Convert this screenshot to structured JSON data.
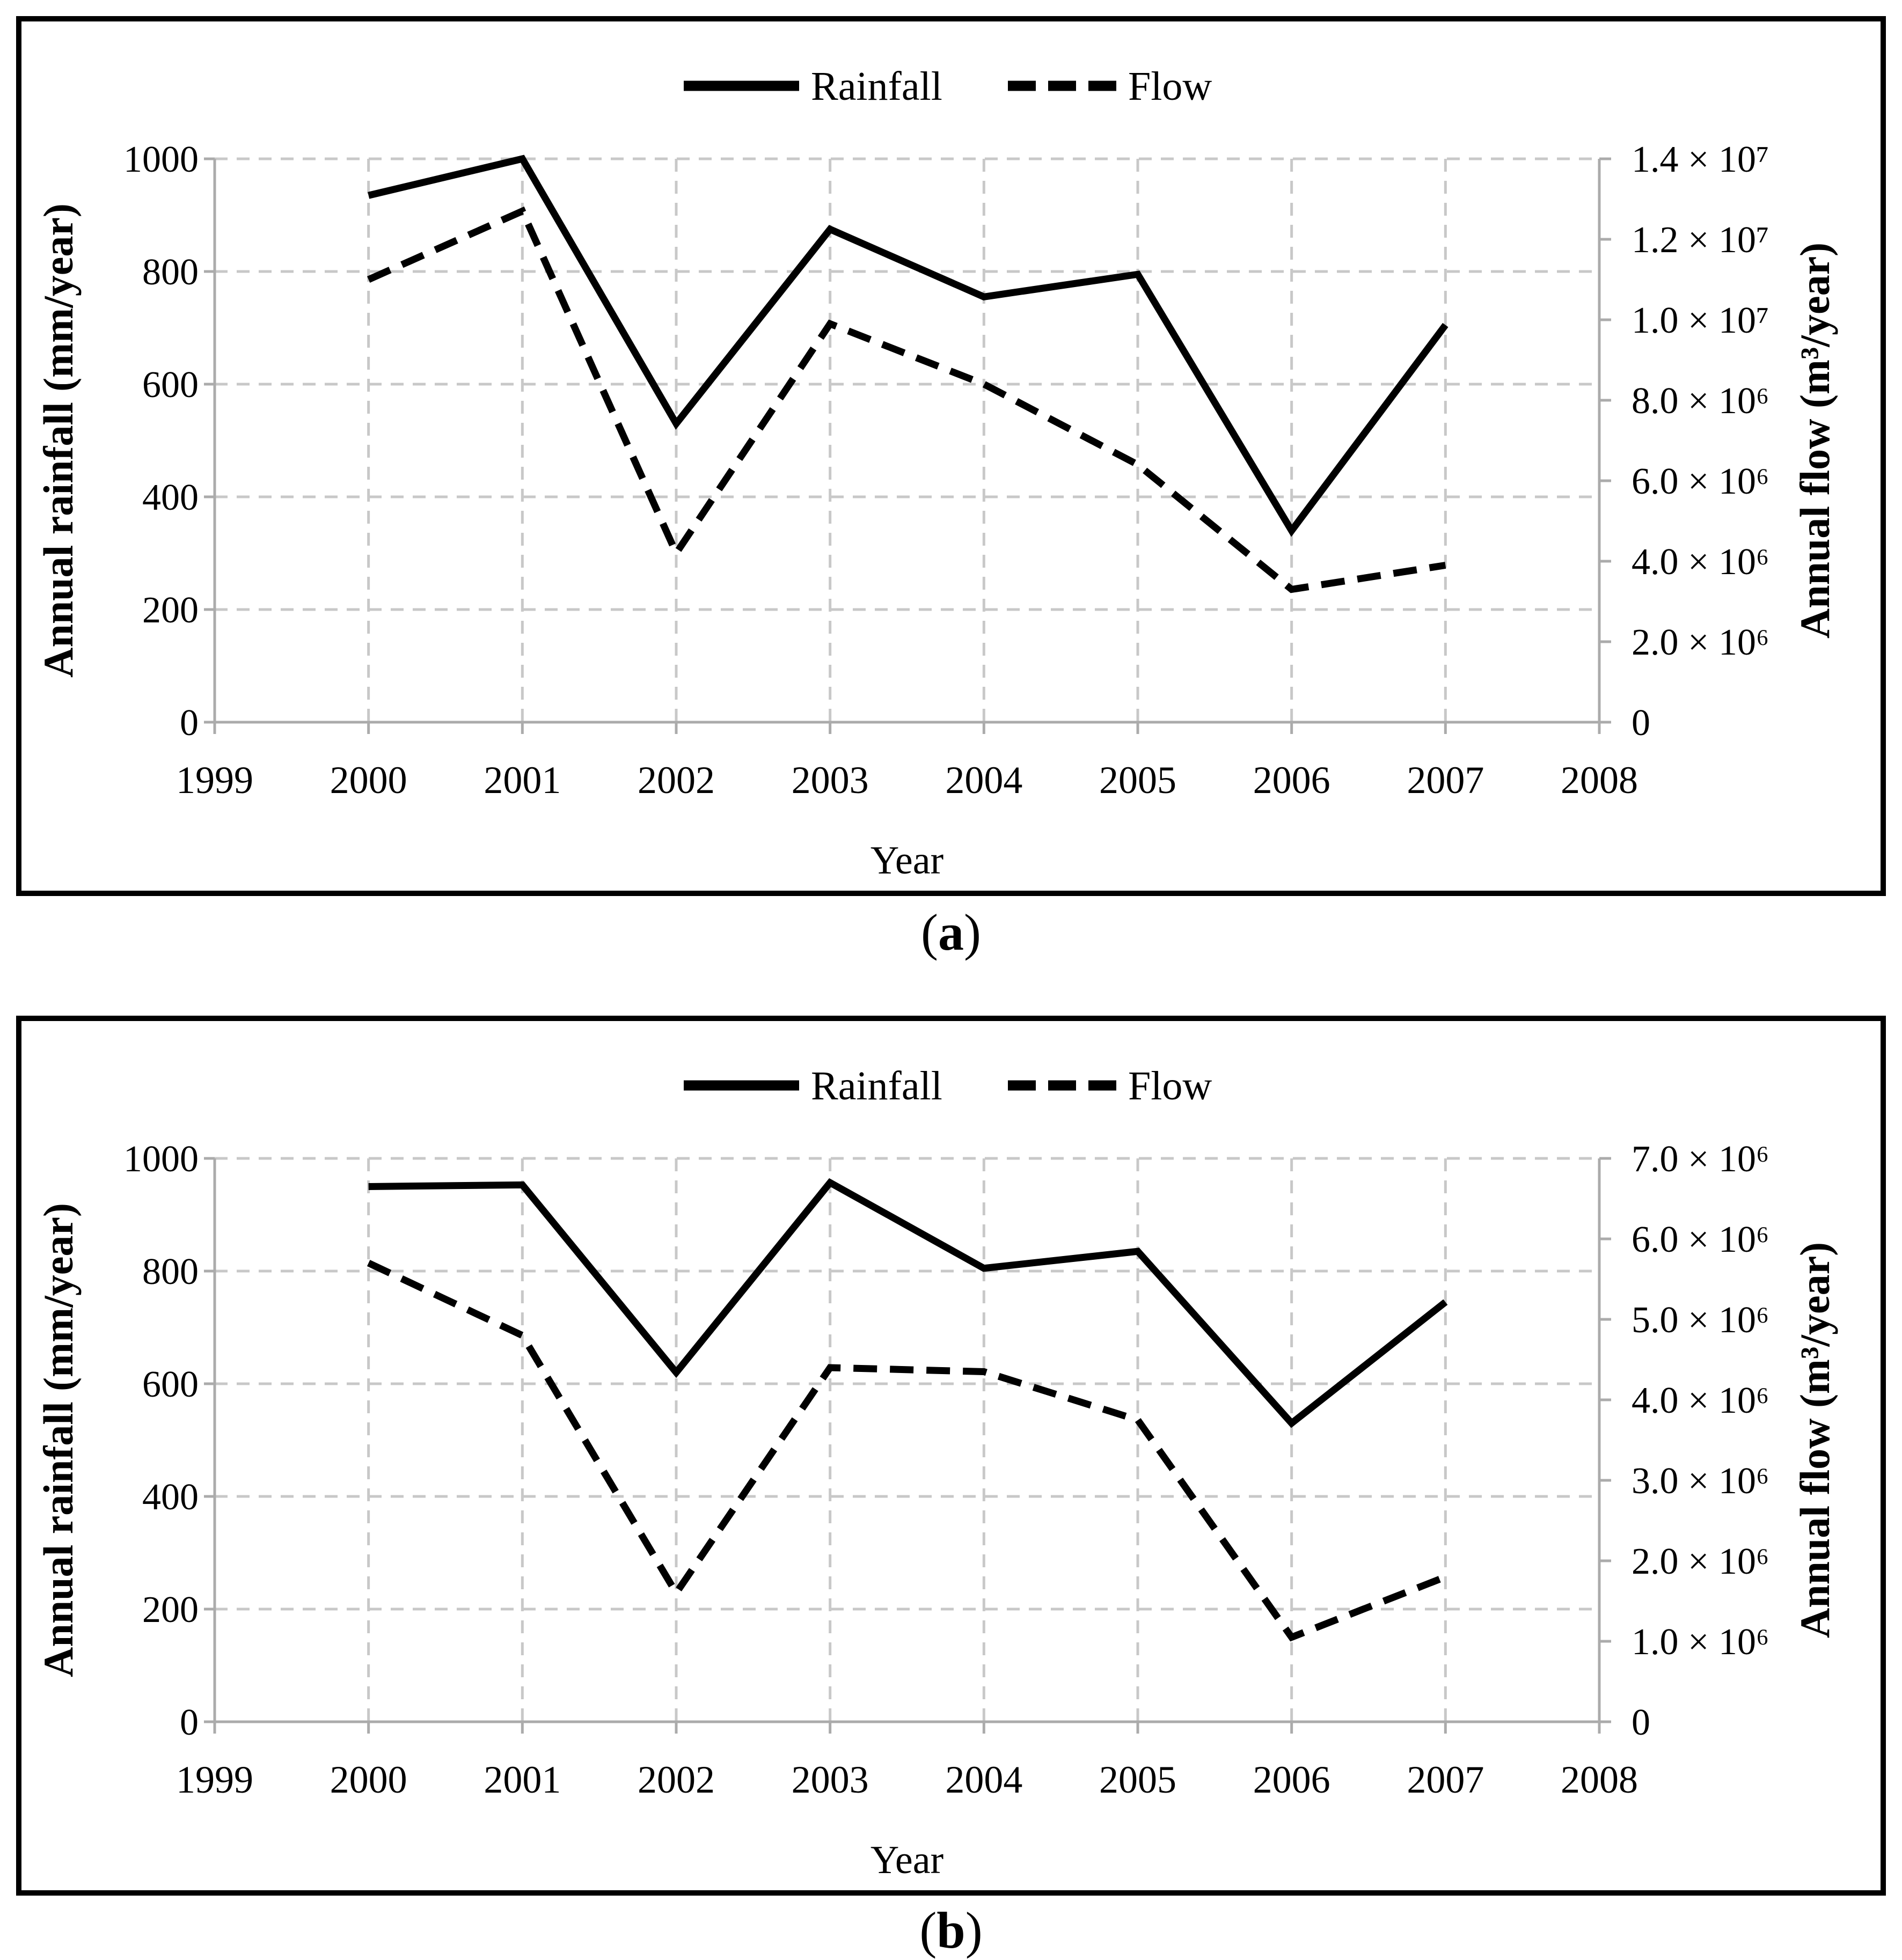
{
  "figure": {
    "captions": {
      "a": {
        "open": "(",
        "letter": "a",
        "close": ")"
      },
      "b": {
        "open": "(",
        "letter": "b",
        "close": ")"
      }
    },
    "legend": {
      "rainfall": "Rainfall",
      "flow": "Flow"
    },
    "colors": {
      "line": "#000000",
      "grid": "#c8c8c8",
      "axis": "#ababab",
      "border": "#000000",
      "background": "#ffffff",
      "text": "#000000"
    }
  },
  "chart_data": [
    {
      "id": "a",
      "type": "line",
      "title": "",
      "xlabel": "Year",
      "ylabel_left": "Annual rainfall (mm/year)",
      "ylabel_right": "Annual flow (m³/year)",
      "legend_position": "top",
      "grid": true,
      "x_range": [
        1999,
        2008
      ],
      "x_ticks": [
        "1999",
        "2000",
        "2001",
        "2002",
        "2003",
        "2004",
        "2005",
        "2006",
        "2007",
        "2008"
      ],
      "left_axis": {
        "range": [
          0,
          1000
        ],
        "tick_step": 200,
        "tick_labels_top_down": [
          "1000",
          "800",
          "600",
          "400",
          "200",
          "0"
        ]
      },
      "right_axis": {
        "range": [
          0,
          14000000
        ],
        "tick_step": 2000000,
        "tick_labels_top_down": [
          "1.4 × 10⁷",
          "1.2 × 10⁷",
          "1.0 × 10⁷",
          "8.0 × 10⁶",
          "6.0 × 10⁶",
          "4.0 × 10⁶",
          "2.0 × 10⁶",
          "0"
        ]
      },
      "x": [
        2000,
        2001,
        2002,
        2003,
        2004,
        2005,
        2006,
        2007
      ],
      "series": [
        {
          "name": "Rainfall",
          "axis": "left",
          "line_style": "solid",
          "values": [
            935,
            1000,
            530,
            875,
            755,
            795,
            340,
            705
          ]
        },
        {
          "name": "Flow",
          "axis": "right",
          "line_style": "dashed",
          "values": [
            11000000,
            12700000,
            4200000,
            9900000,
            8400000,
            6400000,
            3300000,
            3900000
          ]
        }
      ]
    },
    {
      "id": "b",
      "type": "line",
      "title": "",
      "xlabel": "Year",
      "ylabel_left": "Annual rainfall (mm/year)",
      "ylabel_right": "Annual flow (m³/year)",
      "legend_position": "top",
      "grid": true,
      "x_range": [
        1999,
        2008
      ],
      "x_ticks": [
        "1999",
        "2000",
        "2001",
        "2002",
        "2003",
        "2004",
        "2005",
        "2006",
        "2007",
        "2008"
      ],
      "left_axis": {
        "range": [
          0,
          1000
        ],
        "tick_step": 200,
        "tick_labels_top_down": [
          "1000",
          "800",
          "600",
          "400",
          "200",
          "0"
        ]
      },
      "right_axis": {
        "range": [
          0,
          7000000
        ],
        "tick_step": 1000000,
        "tick_labels_top_down": [
          "7.0 × 10⁶",
          "6.0 × 10⁶",
          "5.0 × 10⁶",
          "4.0 × 10⁶",
          "3.0 × 10⁶",
          "2.0 × 10⁶",
          "1.0 × 10⁶",
          "0"
        ]
      },
      "x": [
        2000,
        2001,
        2002,
        2003,
        2004,
        2005,
        2006,
        2007
      ],
      "series": [
        {
          "name": "Rainfall",
          "axis": "left",
          "line_style": "solid",
          "values": [
            950,
            953,
            620,
            957,
            805,
            835,
            530,
            745
          ]
        },
        {
          "name": "Flow",
          "axis": "right",
          "line_style": "dashed",
          "values": [
            5700000,
            4800000,
            1600000,
            4400000,
            4350000,
            3750000,
            1050000,
            1800000
          ]
        }
      ]
    }
  ]
}
